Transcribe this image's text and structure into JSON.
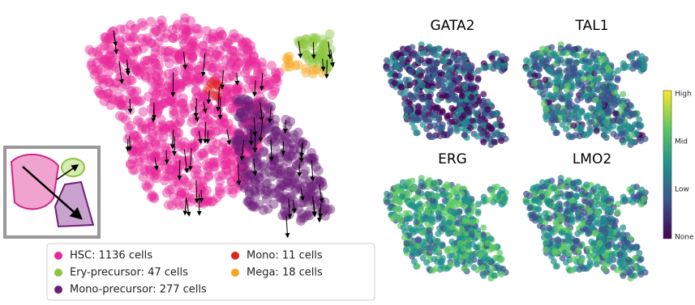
{
  "legend": {
    "items": [
      {
        "label": "HSC: 1136 cells",
        "color": "#e8289a"
      },
      {
        "label": "Ery-precursor: 47 cells",
        "color": "#8cc63f"
      },
      {
        "label": "Mono-precursor: 277 cells",
        "color": "#6d2077"
      },
      {
        "label": "Mono: 11 cells",
        "color": "#e2231a"
      },
      {
        "label": "Mega: 18 cells",
        "color": "#f7a51c"
      }
    ]
  },
  "panels": [
    {
      "title": "GATA2"
    },
    {
      "title": "TAL1"
    },
    {
      "title": "ERG"
    },
    {
      "title": "LMO2"
    }
  ],
  "colorbar": {
    "labels": [
      "High",
      "Mid",
      "Low",
      "None"
    ]
  }
}
